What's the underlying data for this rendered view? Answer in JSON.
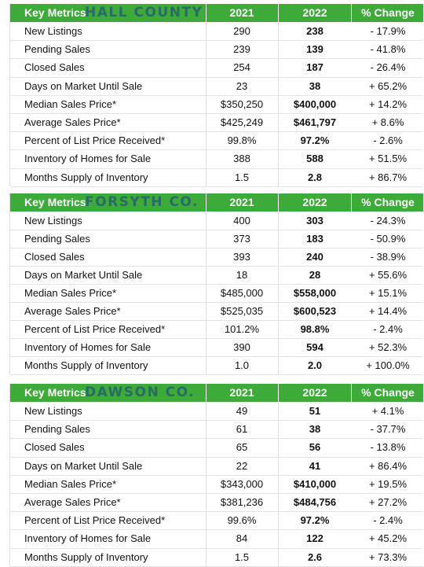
{
  "tables": [
    {
      "header": {
        "metric": "Key Metrics",
        "area": "HALL COUNTY",
        "y1": "2021",
        "y2": "2022",
        "change": "% Change"
      },
      "rows": [
        [
          "New Listings",
          "290",
          "238",
          "- 17.9%"
        ],
        [
          "Pending Sales",
          "239",
          "139",
          "- 41.8%"
        ],
        [
          "Closed Sales",
          "254",
          "187",
          "- 26.4%"
        ],
        [
          "Days on Market Until Sale",
          "23",
          "38",
          "+ 65.2%"
        ],
        [
          "Median Sales Price*",
          "$350,250",
          "$400,000",
          "+ 14.2%"
        ],
        [
          "Average Sales Price*",
          "$425,249",
          "$461,797",
          "+ 8.6%"
        ],
        [
          "Percent of List Price Received*",
          "99.8%",
          "97.2%",
          "- 2.6%"
        ],
        [
          "Inventory of Homes for Sale",
          "388",
          "588",
          "+ 51.5%"
        ],
        [
          "Months Supply of Inventory",
          "1.5",
          "2.8",
          "+ 86.7%"
        ]
      ]
    },
    {
      "header": {
        "metric": "Key Metrics",
        "area": "FORSYTH CO.",
        "y1": "2021",
        "y2": "2022",
        "change": "% Change"
      },
      "rows": [
        [
          "New Listings",
          "400",
          "303",
          "- 24.3%"
        ],
        [
          "Pending Sales",
          "373",
          "183",
          "- 50.9%"
        ],
        [
          "Closed Sales",
          "393",
          "240",
          "- 38.9%"
        ],
        [
          "Days on Market Until Sale",
          "18",
          "28",
          "+ 55.6%"
        ],
        [
          "Median Sales Price*",
          "$485,000",
          "$558,000",
          "+ 15.1%"
        ],
        [
          "Average Sales Price*",
          "$525,035",
          "$600,523",
          "+ 14.4%"
        ],
        [
          "Percent of List Price Received*",
          "101.2%",
          "98.8%",
          "- 2.4%"
        ],
        [
          "Inventory of Homes for Sale",
          "390",
          "594",
          "+ 52.3%"
        ],
        [
          "Months Supply of Inventory",
          "1.0",
          "2.0",
          "+ 100.0%"
        ]
      ]
    },
    {
      "header": {
        "metric": "Key Metrics",
        "area": "DAWSON CO.",
        "y1": "2021",
        "y2": "2022",
        "change": "% Change"
      },
      "rows": [
        [
          "New Listings",
          "49",
          "51",
          "+ 4.1%"
        ],
        [
          "Pending Sales",
          "61",
          "38",
          "- 37.7%"
        ],
        [
          "Closed Sales",
          "65",
          "56",
          "- 13.8%"
        ],
        [
          "Days on Market Until Sale",
          "22",
          "41",
          "+ 86.4%"
        ],
        [
          "Median Sales Price*",
          "$343,000",
          "$410,000",
          "+ 19.5%"
        ],
        [
          "Average Sales Price*",
          "$381,236",
          "$484,756",
          "+ 27.2%"
        ],
        [
          "Percent of List Price Received*",
          "99.6%",
          "97.2%",
          "- 2.4%"
        ],
        [
          "Inventory of Homes for Sale",
          "84",
          "122",
          "+ 45.2%"
        ],
        [
          "Months Supply of Inventory",
          "1.5",
          "2.6",
          "+ 73.3%"
        ]
      ]
    }
  ]
}
